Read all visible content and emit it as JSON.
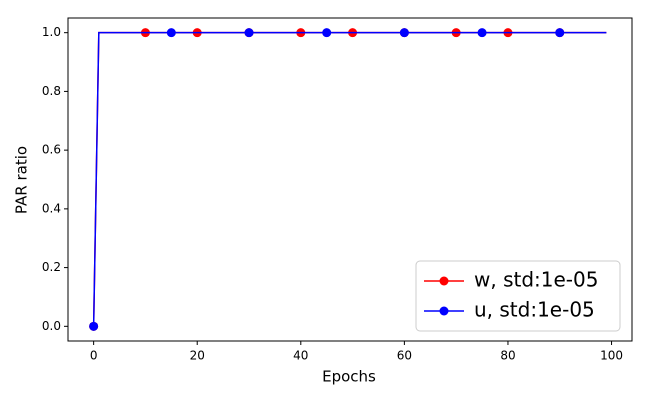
{
  "chart_data": {
    "type": "line",
    "xlabel": "Epochs",
    "ylabel": "PAR ratio",
    "x": [
      0,
      1,
      2,
      3,
      4,
      5,
      6,
      7,
      8,
      9,
      10,
      11,
      12,
      13,
      14,
      15,
      16,
      17,
      18,
      19,
      20,
      21,
      22,
      23,
      24,
      25,
      26,
      27,
      28,
      29,
      30,
      31,
      32,
      33,
      34,
      35,
      36,
      37,
      38,
      39,
      40,
      41,
      42,
      43,
      44,
      45,
      46,
      47,
      48,
      49,
      50,
      51,
      52,
      53,
      54,
      55,
      56,
      57,
      58,
      59,
      60,
      61,
      62,
      63,
      64,
      65,
      66,
      67,
      68,
      69,
      70,
      71,
      72,
      73,
      74,
      75,
      76,
      77,
      78,
      79,
      80,
      81,
      82,
      83,
      84,
      85,
      86,
      87,
      88,
      89,
      90,
      91,
      92,
      93,
      94,
      95,
      96,
      97,
      98,
      99
    ],
    "series": [
      {
        "name": "w, std:1e-05",
        "color": "#ff0000",
        "markevery": 10,
        "values": [
          0,
          1,
          1,
          1,
          1,
          1,
          1,
          1,
          1,
          1,
          1,
          1,
          1,
          1,
          1,
          1,
          1,
          1,
          1,
          1,
          1,
          1,
          1,
          1,
          1,
          1,
          1,
          1,
          1,
          1,
          1,
          1,
          1,
          1,
          1,
          1,
          1,
          1,
          1,
          1,
          1,
          1,
          1,
          1,
          1,
          1,
          1,
          1,
          1,
          1,
          1,
          1,
          1,
          1,
          1,
          1,
          1,
          1,
          1,
          1,
          1,
          1,
          1,
          1,
          1,
          1,
          1,
          1,
          1,
          1,
          1,
          1,
          1,
          1,
          1,
          1,
          1,
          1,
          1,
          1,
          1,
          1,
          1,
          1,
          1,
          1,
          1,
          1,
          1,
          1,
          1,
          1,
          1,
          1,
          1,
          1,
          1,
          1,
          1,
          1
        ]
      },
      {
        "name": "u, std:1e-05",
        "color": "#0000ff",
        "markevery": 15,
        "values": [
          0,
          1,
          1,
          1,
          1,
          1,
          1,
          1,
          1,
          1,
          1,
          1,
          1,
          1,
          1,
          1,
          1,
          1,
          1,
          1,
          1,
          1,
          1,
          1,
          1,
          1,
          1,
          1,
          1,
          1,
          1,
          1,
          1,
          1,
          1,
          1,
          1,
          1,
          1,
          1,
          1,
          1,
          1,
          1,
          1,
          1,
          1,
          1,
          1,
          1,
          1,
          1,
          1,
          1,
          1,
          1,
          1,
          1,
          1,
          1,
          1,
          1,
          1,
          1,
          1,
          1,
          1,
          1,
          1,
          1,
          1,
          1,
          1,
          1,
          1,
          1,
          1,
          1,
          1,
          1,
          1,
          1,
          1,
          1,
          1,
          1,
          1,
          1,
          1,
          1,
          1,
          1,
          1,
          1,
          1,
          1,
          1,
          1,
          1,
          1
        ]
      }
    ],
    "xlim": [
      -4.95,
      103.95
    ],
    "ylim": [
      -0.05,
      1.05
    ],
    "xticks": [
      0,
      20,
      40,
      60,
      80,
      100
    ],
    "yticks": [
      {
        "value": 0,
        "label": "0.0"
      },
      {
        "value": 0.2,
        "label": "0.2"
      },
      {
        "value": 0.4,
        "label": "0.4"
      },
      {
        "value": 0.6,
        "label": "0.6"
      },
      {
        "value": 0.8,
        "label": "0.8"
      },
      {
        "value": 1,
        "label": "1.0"
      }
    ],
    "legend": "lower right"
  }
}
